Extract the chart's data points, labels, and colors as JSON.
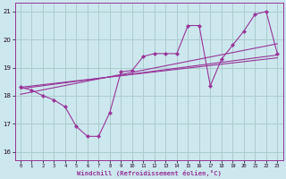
{
  "xlabel": "Windchill (Refroidissement éolien,°C)",
  "xlim": [
    -0.5,
    23.5
  ],
  "ylim": [
    15.7,
    21.3
  ],
  "xticks": [
    0,
    1,
    2,
    3,
    4,
    5,
    6,
    7,
    8,
    9,
    10,
    11,
    12,
    13,
    14,
    15,
    16,
    17,
    18,
    19,
    20,
    21,
    22,
    23
  ],
  "yticks": [
    16,
    17,
    18,
    19,
    20,
    21
  ],
  "bg_color": "#cce8ee",
  "grid_color": "#aacccc",
  "line_color": "#993399",
  "series1_x": [
    0,
    1,
    2,
    3,
    4,
    5,
    6,
    7,
    8,
    9,
    10,
    11,
    12,
    13,
    14,
    15,
    16,
    17,
    18,
    19,
    20,
    21,
    22,
    23
  ],
  "series1_y": [
    18.3,
    18.2,
    18.0,
    17.85,
    17.6,
    16.9,
    16.55,
    16.55,
    17.4,
    18.85,
    18.9,
    19.4,
    19.5,
    19.5,
    19.5,
    20.5,
    20.5,
    18.35,
    19.3,
    19.8,
    20.3,
    20.9,
    21.0,
    19.5
  ],
  "trend1_x": [
    0,
    23
  ],
  "trend1_y": [
    18.25,
    19.45
  ],
  "trend2_x": [
    0,
    23
  ],
  "trend2_y": [
    18.05,
    19.85
  ],
  "trend3_x": [
    0,
    23
  ],
  "trend3_y": [
    18.3,
    19.35
  ]
}
